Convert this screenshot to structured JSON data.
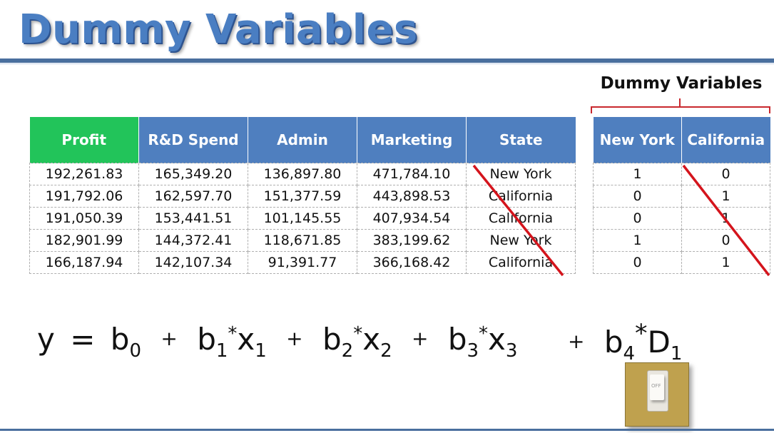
{
  "slide": {
    "title": "Dummy Variables"
  },
  "main_table": {
    "headers": [
      "Profit",
      "R&D Spend",
      "Admin",
      "Marketing",
      "State"
    ],
    "rows": [
      [
        "192,261.83",
        "165,349.20",
        "136,897.80",
        "471,784.10",
        "New York"
      ],
      [
        "191,792.06",
        "162,597.70",
        "151,377.59",
        "443,898.53",
        "California"
      ],
      [
        "191,050.39",
        "153,441.51",
        "101,145.55",
        "407,934.54",
        "California"
      ],
      [
        "182,901.99",
        "144,372.41",
        "118,671.85",
        "383,199.62",
        "New York"
      ],
      [
        "166,187.94",
        "142,107.34",
        "91,391.77",
        "366,168.42",
        "California"
      ]
    ]
  },
  "dummy": {
    "heading": "Dummy Variables",
    "headers": [
      "New York",
      "California"
    ],
    "rows": [
      [
        "1",
        "0"
      ],
      [
        "0",
        "1"
      ],
      [
        "0",
        "1"
      ],
      [
        "1",
        "0"
      ],
      [
        "0",
        "1"
      ]
    ]
  },
  "equation": {
    "y": "y",
    "eq": "=",
    "plus": "+",
    "star": "*",
    "b0": "b",
    "b0_sub": "0",
    "b1": "b",
    "b1_sub": "1",
    "x1": "x",
    "x1_sub": "1",
    "b2": "b",
    "b2_sub": "2",
    "x2": "x",
    "x2_sub": "2",
    "b3": "b",
    "b3_sub": "3",
    "x3": "x",
    "x3_sub": "3",
    "b4": "b",
    "b4_sub": "4",
    "d1": "D",
    "d1_sub": "1"
  },
  "switch": {
    "label": "OFF"
  },
  "colors": {
    "title": "#4a7ec2",
    "header_blue": "#4f7fbf",
    "header_profit": "#22c45a",
    "strike_red": "#d4141c",
    "switch_plate": "#bfa14e"
  }
}
